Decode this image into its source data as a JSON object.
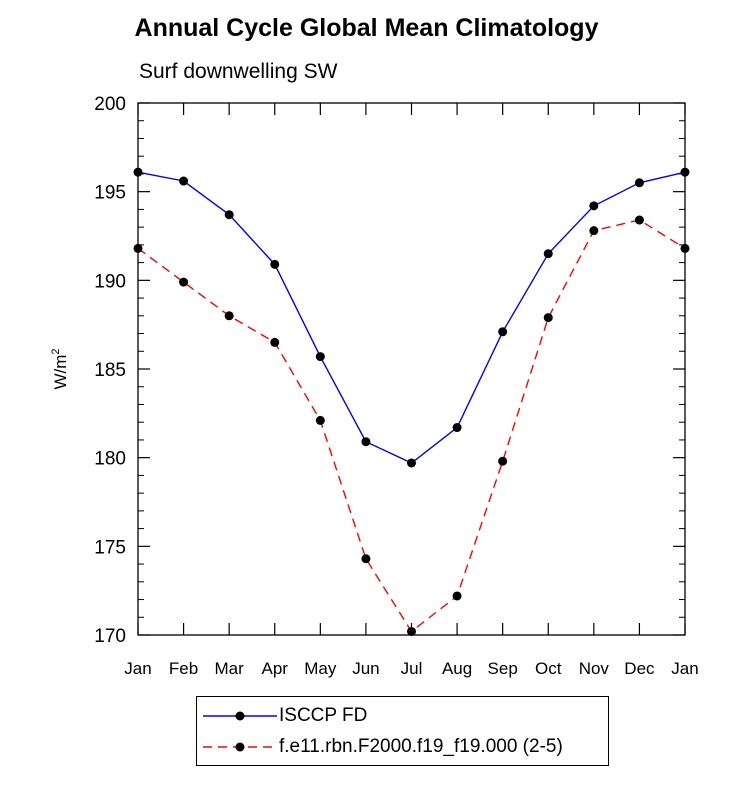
{
  "title": "Annual Cycle Global Mean Climatology",
  "subtitle": "Surf downwelling SW",
  "chart_data": {
    "type": "line",
    "title": "Annual Cycle Global Mean Climatology",
    "subtitle": "Surf downwelling SW",
    "xlabel": "",
    "ylabel_main": "W/m",
    "ylabel_sup": "2",
    "categories": [
      "Jan",
      "Feb",
      "Mar",
      "Apr",
      "May",
      "Jun",
      "Jul",
      "Aug",
      "Sep",
      "Oct",
      "Nov",
      "Dec",
      "Jan"
    ],
    "ylim": [
      170,
      200
    ],
    "yticks": [
      170,
      175,
      180,
      185,
      190,
      195,
      200
    ],
    "grid": false,
    "legend_position": "bottom-center",
    "series": [
      {
        "name": "ISCCP FD",
        "color": "#0000ff",
        "dash": "solid",
        "values": [
          196.1,
          195.6,
          193.7,
          190.9,
          185.7,
          180.9,
          179.7,
          181.7,
          187.1,
          191.5,
          194.2,
          195.5,
          196.1
        ]
      },
      {
        "name": "f.e11.rbn.F2000.f19_f19.000 (2-5)",
        "color": "#ff0000",
        "dash": "dashed",
        "values": [
          191.8,
          189.9,
          188.0,
          186.5,
          182.1,
          174.3,
          170.2,
          172.2,
          179.8,
          187.9,
          192.8,
          193.4,
          191.8
        ]
      }
    ]
  }
}
